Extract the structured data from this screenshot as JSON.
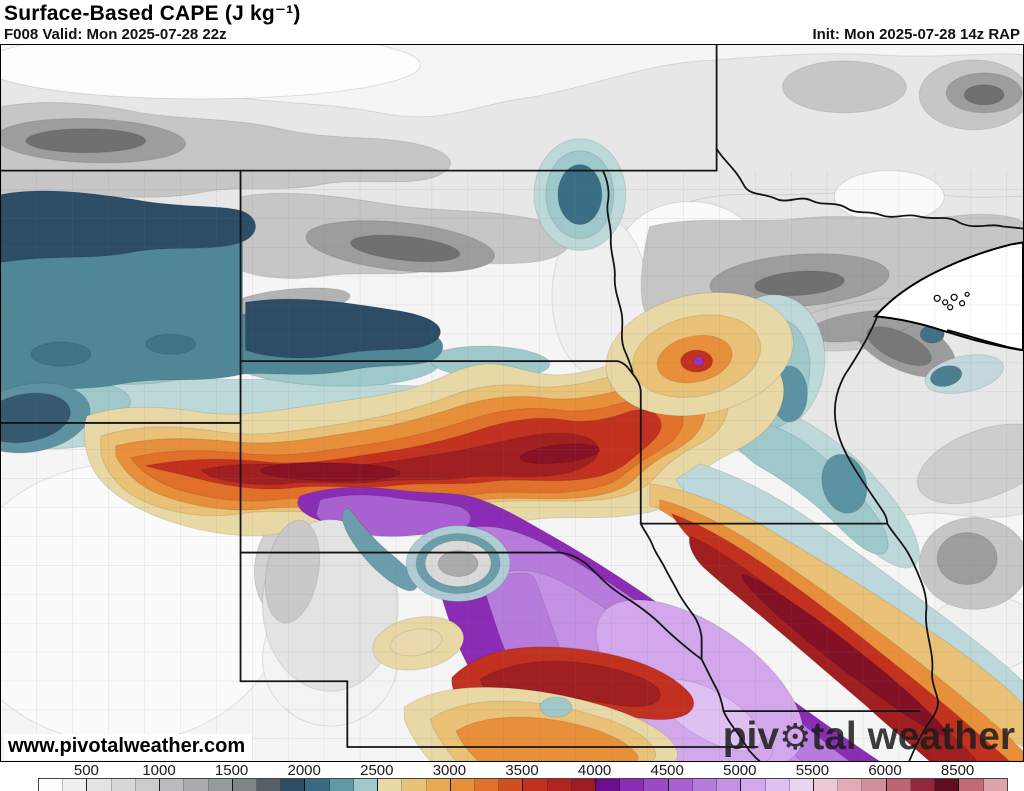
{
  "header": {
    "title": "Surface-Based CAPE (J kg⁻¹)",
    "valid": "F008 Valid: Mon 2025-07-28 22z",
    "init": "Init: Mon 2025-07-28 14z RAP"
  },
  "branding": {
    "watermark": "www.pivotalweather.com",
    "logo_pre": "piv",
    "logo_gear": "⚙",
    "logo_post": "tal weather"
  },
  "colorbar": {
    "unit": "J kg⁻¹",
    "tick_labels": [
      "500",
      "1000",
      "1500",
      "2000",
      "2500",
      "3000",
      "3500",
      "4000",
      "4500",
      "5000",
      "5500",
      "6000",
      "8500"
    ],
    "first_tick_cell_boundary": 2,
    "cells_per_tick": 3,
    "cells": [
      "#fdfdfd",
      "#f0f0f0",
      "#e4e4e4",
      "#d7d7d7",
      "#cacccc",
      "#b9bcbc",
      "#a7abab",
      "#959a9b",
      "#808687",
      "#576065",
      "#2d4c66",
      "#396c82",
      "#5f9aa4",
      "#9fc8cb",
      "#e8d8a5",
      "#e9c177",
      "#e8a953",
      "#e78f3b",
      "#e1702a",
      "#d14e1f",
      "#c23120",
      "#b0251f",
      "#9e1b22",
      "#6c0d8f",
      "#8b2cb5",
      "#9b4ac6",
      "#a961d2",
      "#b77bdc",
      "#c591e5",
      "#d2a7ec",
      "#dfc0f2",
      "#ead5f0",
      "#ecc9d2",
      "#e0aab6",
      "#d18e9d",
      "#bc6675",
      "#93283c",
      "#5f0e22",
      "#c06a76",
      "#dca4ab"
    ]
  },
  "map_colors": {
    "state_border": "#141414",
    "county_line": "#787878",
    "water_outline": "#000000"
  }
}
